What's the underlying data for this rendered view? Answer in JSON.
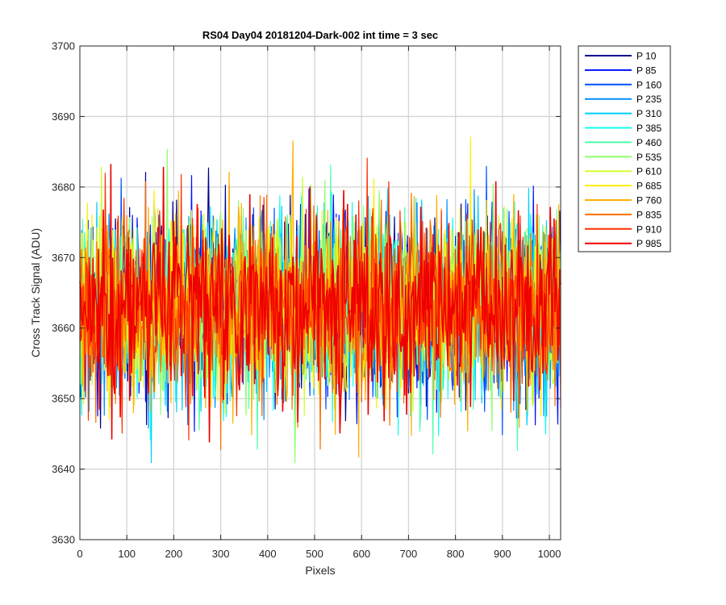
{
  "chart_data": {
    "type": "line",
    "title": "RS04 Day04 20181204-Dark-002 int time = 3 sec",
    "xlabel": "Pixels",
    "ylabel": "Cross Track Signal (ADU)",
    "xlim": [
      0,
      1024
    ],
    "ylim": [
      3630,
      3700
    ],
    "xticks": [
      0,
      100,
      200,
      300,
      400,
      500,
      600,
      700,
      800,
      900,
      1000
    ],
    "yticks": [
      3630,
      3640,
      3650,
      3660,
      3670,
      3680,
      3690,
      3700
    ],
    "grid": true,
    "legend_position": "outside-top-right",
    "series_summary": {
      "center": 3663,
      "typical_min": 3645,
      "typical_max": 3684,
      "noise_sigma": 6.5
    },
    "series": [
      {
        "name": "P 10",
        "color": "#00008F"
      },
      {
        "name": "P 85",
        "color": "#0010FF"
      },
      {
        "name": "P 160",
        "color": "#0050FF"
      },
      {
        "name": "P 235",
        "color": "#0090FF"
      },
      {
        "name": "P 310",
        "color": "#00CFFF"
      },
      {
        "name": "P 385",
        "color": "#10FFEF"
      },
      {
        "name": "P 460",
        "color": "#50FFAF"
      },
      {
        "name": "P 535",
        "color": "#90FF6F"
      },
      {
        "name": "P 610",
        "color": "#CFFF30"
      },
      {
        "name": "P 685",
        "color": "#FFEF00"
      },
      {
        "name": "P 760",
        "color": "#FFB000"
      },
      {
        "name": "P 835",
        "color": "#FF7000"
      },
      {
        "name": "P 910",
        "color": "#FF3000"
      },
      {
        "name": "P 985",
        "color": "#EF0000"
      }
    ]
  }
}
